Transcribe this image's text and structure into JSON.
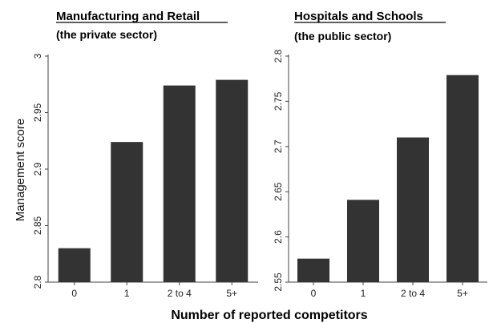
{
  "chart_data": [
    {
      "type": "bar",
      "title": "Manufacturing and Retail",
      "subtitle": "(the private sector)",
      "categories": [
        "0",
        "1",
        "2 to 4",
        "5+"
      ],
      "values": [
        2.83,
        2.924,
        2.974,
        2.979
      ],
      "ylabel": "Management score",
      "ylim": [
        2.8,
        3.0
      ],
      "yticks": [
        "2.8",
        "2.85",
        "2.9",
        "2.95",
        "3"
      ],
      "color": "#333333",
      "grid": false
    },
    {
      "type": "bar",
      "title": "Hospitals and Schools",
      "subtitle": "(the public sector)",
      "categories": [
        "0",
        "1",
        "2 to 4",
        "5+"
      ],
      "values": [
        2.576,
        2.641,
        2.71,
        2.779
      ],
      "ylim": [
        2.55,
        2.8
      ],
      "yticks": [
        "2.55",
        "2.6",
        "2.65",
        "2.7",
        "2.75",
        "2.8"
      ],
      "color": "#333333",
      "grid": false
    }
  ],
  "shared_xlabel": "Number of reported competitors"
}
